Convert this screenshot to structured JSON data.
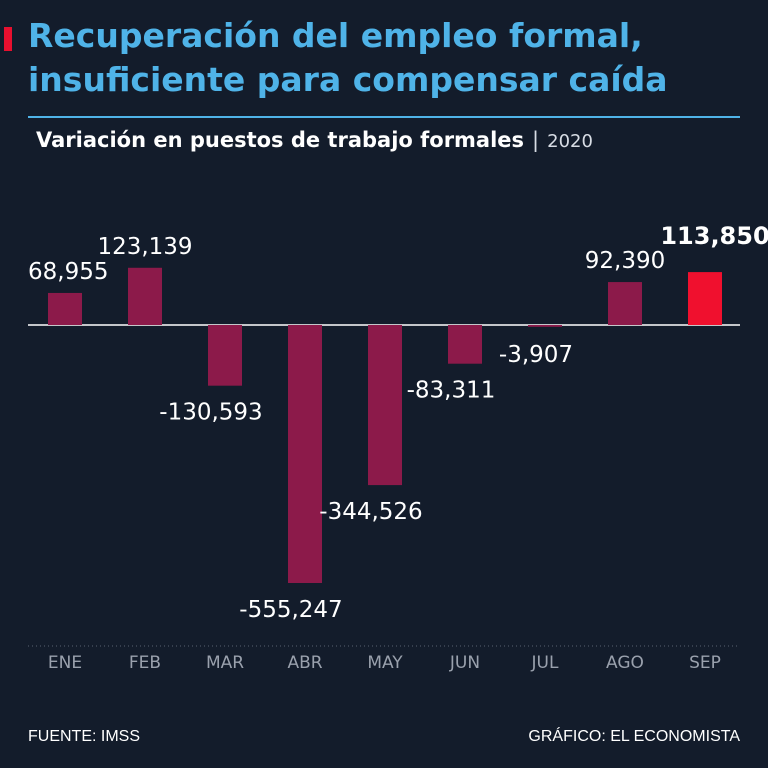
{
  "header": {
    "title_line1": "Recuperación del empleo formal,",
    "title_line2": "insuficiente para compensar caída",
    "subtitle": "Variación en puestos de trabajo formales",
    "separator": "|",
    "year": "2020"
  },
  "colors": {
    "bar": "#8c1a4a",
    "highlight": "#f0102e",
    "title": "#4fb3e8",
    "background": "#131c2b"
  },
  "chart_data": {
    "type": "bar",
    "title": "Variación en puestos de trabajo formales",
    "xlabel": "",
    "ylabel": "",
    "ylim": [
      -560000,
      130000
    ],
    "grid": false,
    "categories": [
      "ENE",
      "FEB",
      "MAR",
      "ABR",
      "MAY",
      "JUN",
      "JUL",
      "AGO",
      "SEP"
    ],
    "values": [
      68955,
      123139,
      -130593,
      -555247,
      -344526,
      -83311,
      -3907,
      92390,
      113850
    ],
    "labels": [
      "68,955",
      "123,139",
      "-130,593",
      "-555,247",
      "-344,526",
      "-83,311",
      "-3,907",
      "92,390",
      "113,850"
    ],
    "highlight_index": 8
  },
  "footer": {
    "source": "FUENTE: IMSS",
    "credit": "GRÁFICO: EL ECONOMISTA"
  }
}
